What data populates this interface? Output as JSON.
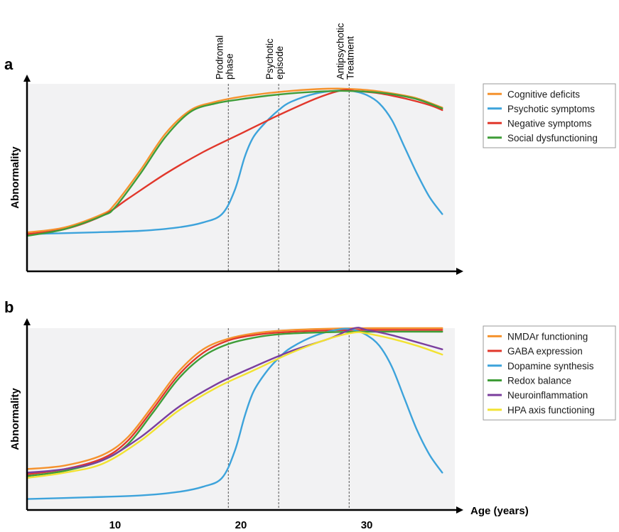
{
  "chart_data": [
    {
      "panel": "a",
      "type": "line",
      "ylabel": "Abnormality",
      "xlim": [
        3,
        37
      ],
      "ylim": [
        0,
        1
      ],
      "phases": [
        {
          "name": "prodromal",
          "lines": [
            "Prodromal",
            "phase"
          ],
          "x": 19
        },
        {
          "name": "psychotic",
          "lines": [
            "Psychotic",
            "episode"
          ],
          "x": 23
        },
        {
          "name": "antipsychotic",
          "lines": [
            "Antipsychotic",
            "Treatment"
          ],
          "x": 28.6
        }
      ],
      "series": [
        {
          "name": "Cognitive deficits",
          "color": "#f5922d",
          "points": [
            [
              3,
              0.13
            ],
            [
              6,
              0.16
            ],
            [
              9,
              0.24
            ],
            [
              10,
              0.3
            ],
            [
              12,
              0.5
            ],
            [
              14,
              0.72
            ],
            [
              16,
              0.86
            ],
            [
              18,
              0.91
            ],
            [
              20,
              0.94
            ],
            [
              22,
              0.96
            ],
            [
              24,
              0.975
            ],
            [
              26,
              0.985
            ],
            [
              28,
              0.988
            ],
            [
              30,
              0.98
            ],
            [
              32,
              0.96
            ],
            [
              34,
              0.93
            ],
            [
              36,
              0.875
            ]
          ]
        },
        {
          "name": "Psychotic symptoms",
          "color": "#3da3db",
          "points": [
            [
              3,
              0.12
            ],
            [
              8,
              0.13
            ],
            [
              12,
              0.14
            ],
            [
              15,
              0.16
            ],
            [
              17,
              0.19
            ],
            [
              18.5,
              0.24
            ],
            [
              19.5,
              0.38
            ],
            [
              20.3,
              0.58
            ],
            [
              21,
              0.7
            ],
            [
              22,
              0.79
            ],
            [
              23,
              0.86
            ],
            [
              24,
              0.91
            ],
            [
              26,
              0.96
            ],
            [
              28,
              0.978
            ],
            [
              29,
              0.972
            ],
            [
              30,
              0.95
            ],
            [
              31,
              0.9
            ],
            [
              32,
              0.8
            ],
            [
              33,
              0.64
            ],
            [
              34,
              0.48
            ],
            [
              35,
              0.34
            ],
            [
              36,
              0.24
            ]
          ]
        },
        {
          "name": "Negative symptoms",
          "color": "#e1372b",
          "points": [
            [
              3,
              0.12
            ],
            [
              6,
              0.15
            ],
            [
              9,
              0.23
            ],
            [
              11,
              0.33
            ],
            [
              14,
              0.48
            ],
            [
              17,
              0.61
            ],
            [
              20,
              0.72
            ],
            [
              23,
              0.83
            ],
            [
              26,
              0.93
            ],
            [
              28,
              0.978
            ],
            [
              29,
              0.975
            ],
            [
              31,
              0.96
            ],
            [
              33,
              0.93
            ],
            [
              35,
              0.89
            ],
            [
              36,
              0.86
            ]
          ]
        },
        {
          "name": "Social dysfunctioning",
          "color": "#3f9d38",
          "points": [
            [
              3,
              0.11
            ],
            [
              6,
              0.15
            ],
            [
              9,
              0.23
            ],
            [
              10,
              0.28
            ],
            [
              12,
              0.48
            ],
            [
              14,
              0.7
            ],
            [
              16,
              0.85
            ],
            [
              18,
              0.9
            ],
            [
              20,
              0.925
            ],
            [
              22,
              0.945
            ],
            [
              24,
              0.96
            ],
            [
              26,
              0.97
            ],
            [
              28,
              0.975
            ],
            [
              30,
              0.97
            ],
            [
              32,
              0.955
            ],
            [
              34,
              0.925
            ],
            [
              36,
              0.87
            ]
          ]
        }
      ]
    },
    {
      "panel": "b",
      "type": "line",
      "ylabel": "Abnormality",
      "xlabel": "Age (years)",
      "xlim": [
        3,
        37
      ],
      "ylim": [
        0,
        1
      ],
      "xticks": [
        10,
        20,
        30
      ],
      "phases": [
        {
          "name": "prodromal",
          "x": 19
        },
        {
          "name": "psychotic",
          "x": 23
        },
        {
          "name": "antipsychotic",
          "x": 28.6
        }
      ],
      "series": [
        {
          "name": "NMDAr functioning",
          "color": "#f5922d",
          "points": [
            [
              3,
              0.2
            ],
            [
              6,
              0.22
            ],
            [
              9,
              0.28
            ],
            [
              11,
              0.38
            ],
            [
              13,
              0.56
            ],
            [
              15,
              0.75
            ],
            [
              17,
              0.88
            ],
            [
              19,
              0.94
            ],
            [
              21,
              0.97
            ],
            [
              23,
              0.985
            ],
            [
              26,
              0.995
            ],
            [
              30,
              1.0
            ],
            [
              36,
              1.0
            ]
          ]
        },
        {
          "name": "GABA expression",
          "color": "#e1372b",
          "points": [
            [
              3,
              0.17
            ],
            [
              6,
              0.2
            ],
            [
              9,
              0.26
            ],
            [
              11,
              0.36
            ],
            [
              13,
              0.54
            ],
            [
              15,
              0.73
            ],
            [
              17,
              0.86
            ],
            [
              19,
              0.93
            ],
            [
              21,
              0.96
            ],
            [
              23,
              0.975
            ],
            [
              26,
              0.985
            ],
            [
              30,
              0.99
            ],
            [
              36,
              0.99
            ]
          ]
        },
        {
          "name": "Dopamine synthesis",
          "color": "#3da3db",
          "points": [
            [
              3,
              0.03
            ],
            [
              8,
              0.04
            ],
            [
              12,
              0.05
            ],
            [
              15,
              0.07
            ],
            [
              17,
              0.1
            ],
            [
              18.5,
              0.15
            ],
            [
              19.5,
              0.3
            ],
            [
              20.3,
              0.5
            ],
            [
              21,
              0.64
            ],
            [
              22,
              0.75
            ],
            [
              23,
              0.83
            ],
            [
              24,
              0.89
            ],
            [
              26,
              0.96
            ],
            [
              28,
              0.995
            ],
            [
              29,
              0.99
            ],
            [
              30,
              0.96
            ],
            [
              31,
              0.9
            ],
            [
              32,
              0.78
            ],
            [
              33,
              0.6
            ],
            [
              34,
              0.42
            ],
            [
              35,
              0.28
            ],
            [
              36,
              0.18
            ]
          ]
        },
        {
          "name": "Redox balance",
          "color": "#3f9d38",
          "points": [
            [
              3,
              0.16
            ],
            [
              6,
              0.19
            ],
            [
              9,
              0.25
            ],
            [
              11,
              0.34
            ],
            [
              13,
              0.52
            ],
            [
              15,
              0.71
            ],
            [
              17,
              0.84
            ],
            [
              19,
              0.91
            ],
            [
              21,
              0.945
            ],
            [
              23,
              0.965
            ],
            [
              26,
              0.975
            ],
            [
              30,
              0.98
            ],
            [
              36,
              0.98
            ]
          ]
        },
        {
          "name": "Neuroinflammation",
          "color": "#7b3f9e",
          "points": [
            [
              3,
              0.18
            ],
            [
              6,
              0.2
            ],
            [
              9,
              0.25
            ],
            [
              12,
              0.38
            ],
            [
              15,
              0.55
            ],
            [
              18,
              0.68
            ],
            [
              21,
              0.78
            ],
            [
              24,
              0.87
            ],
            [
              27,
              0.94
            ],
            [
              29,
              1.0
            ],
            [
              30,
              0.99
            ],
            [
              32,
              0.96
            ],
            [
              34,
              0.92
            ],
            [
              36,
              0.88
            ]
          ]
        },
        {
          "name": "HPA axis functioning",
          "color": "#f2e232",
          "points": [
            [
              3,
              0.15
            ],
            [
              6,
              0.18
            ],
            [
              9,
              0.23
            ],
            [
              12,
              0.36
            ],
            [
              15,
              0.53
            ],
            [
              18,
              0.66
            ],
            [
              21,
              0.76
            ],
            [
              24,
              0.86
            ],
            [
              27,
              0.94
            ],
            [
              29,
              0.975
            ],
            [
              30,
              0.97
            ],
            [
              32,
              0.94
            ],
            [
              34,
              0.9
            ],
            [
              36,
              0.85
            ]
          ]
        }
      ]
    }
  ]
}
